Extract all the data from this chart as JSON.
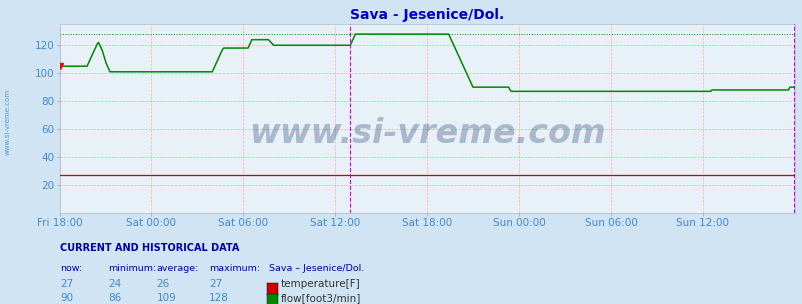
{
  "title": "Sava - Jesenice/Dol.",
  "title_color": "#0000cc",
  "bg_color": "#d0e4f4",
  "plot_bg_color": "#e8f0f8",
  "ylabel_color": "#4488cc",
  "xlabel_color": "#4488cc",
  "xlim": [
    0,
    575
  ],
  "ylim": [
    0,
    135
  ],
  "yticks": [
    20,
    40,
    60,
    80,
    100,
    120
  ],
  "xtick_labels": [
    "Fri 18:00",
    "Sat 00:00",
    "Sat 06:00",
    "Sat 12:00",
    "Sat 18:00",
    "Sun 00:00",
    "Sun 06:00",
    "Sun 12:00"
  ],
  "xtick_positions": [
    0,
    71,
    143,
    215,
    287,
    359,
    431,
    503
  ],
  "temp_max_line_y": 27,
  "flow_max_line_y": 128,
  "temp_color": "#cc0000",
  "flow_color": "#008800",
  "magenta_line_x": 227,
  "right_magenta_x": 574,
  "watermark": "www.si-vreme.com",
  "watermark_color": "#1a3a6a",
  "watermark_alpha": 0.3,
  "watermark_fontsize": 24,
  "left_label": "www.si-vreme.com",
  "left_label_color": "#5599bb",
  "footer_text": "CURRENT AND HISTORICAL DATA",
  "footer_color": "#0000aa",
  "stats_header": [
    "now:",
    "minimum:",
    "average:",
    "maximum:",
    "Sava – Jesenice/Dol."
  ],
  "temp_stats": [
    27,
    24,
    26,
    27
  ],
  "flow_stats": [
    90,
    86,
    109,
    128
  ],
  "temp_label": "temperature[F]",
  "flow_label": "flow[foot3/min]",
  "temp_color_box": "#cc0000",
  "flow_color_box": "#008800",
  "flow_data": [
    105,
    105,
    105,
    105,
    105,
    105,
    105,
    105,
    105,
    105,
    105,
    105,
    105,
    105,
    105,
    105,
    105,
    105,
    105,
    105,
    105,
    105,
    107,
    109,
    111,
    113,
    115,
    117,
    119,
    121,
    122,
    120,
    118,
    116,
    113,
    110,
    107,
    105,
    103,
    101,
    101,
    101,
    101,
    101,
    101,
    101,
    101,
    101,
    101,
    101,
    101,
    101,
    101,
    101,
    101,
    101,
    101,
    101,
    101,
    101,
    101,
    101,
    101,
    101,
    101,
    101,
    101,
    101,
    101,
    101,
    101,
    101,
    101,
    101,
    101,
    101,
    101,
    101,
    101,
    101,
    101,
    101,
    101,
    101,
    101,
    101,
    101,
    101,
    101,
    101,
    101,
    101,
    101,
    101,
    101,
    101,
    101,
    101,
    101,
    101,
    101,
    101,
    101,
    101,
    101,
    101,
    101,
    101,
    101,
    101,
    101,
    101,
    101,
    101,
    101,
    101,
    101,
    101,
    101,
    101,
    103,
    105,
    107,
    109,
    111,
    113,
    115,
    117,
    118,
    118,
    118,
    118,
    118,
    118,
    118,
    118,
    118,
    118,
    118,
    118,
    118,
    118,
    118,
    118,
    118,
    118,
    118,
    118,
    120,
    122,
    124,
    124,
    124,
    124,
    124,
    124,
    124,
    124,
    124,
    124,
    124,
    124,
    124,
    124,
    123,
    122,
    121,
    120,
    120,
    120,
    120,
    120,
    120,
    120,
    120,
    120,
    120,
    120,
    120,
    120,
    120,
    120,
    120,
    120,
    120,
    120,
    120,
    120,
    120,
    120,
    120,
    120,
    120,
    120,
    120,
    120,
    120,
    120,
    120,
    120,
    120,
    120,
    120,
    120,
    120,
    120,
    120,
    120,
    120,
    120,
    120,
    120,
    120,
    120,
    120,
    120,
    120,
    120,
    120,
    120,
    120,
    120,
    120,
    120,
    120,
    120,
    120,
    120,
    122,
    124,
    126,
    128,
    128,
    128,
    128,
    128,
    128,
    128,
    128,
    128,
    128,
    128,
    128,
    128,
    128,
    128,
    128,
    128,
    128,
    128,
    128,
    128,
    128,
    128,
    128,
    128,
    128,
    128,
    128,
    128,
    128,
    128,
    128,
    128,
    128,
    128,
    128,
    128,
    128,
    128,
    128,
    128,
    128,
    128,
    128,
    128,
    128,
    128,
    128,
    128,
    128,
    128,
    128,
    128,
    128,
    128,
    128,
    128,
    128,
    128,
    128,
    128,
    128,
    128,
    128,
    128,
    128,
    128,
    128,
    128,
    128,
    128,
    128,
    128,
    128,
    126,
    124,
    122,
    120,
    118,
    116,
    114,
    112,
    110,
    108,
    106,
    104,
    102,
    100,
    98,
    96,
    94,
    92,
    90,
    90,
    90,
    90,
    90,
    90,
    90,
    90,
    90,
    90,
    90,
    90,
    90,
    90,
    90,
    90,
    90,
    90,
    90,
    90,
    90,
    90,
    90,
    90,
    90,
    90,
    90,
    90,
    90,
    88,
    87,
    87,
    87,
    87,
    87,
    87,
    87,
    87,
    87,
    87,
    87,
    87,
    87,
    87,
    87,
    87,
    87,
    87,
    87,
    87,
    87,
    87,
    87,
    87,
    87,
    87,
    87,
    87,
    87,
    87,
    87,
    87,
    87,
    87,
    87,
    87,
    87,
    87,
    87,
    87,
    87,
    87,
    87,
    87,
    87,
    87,
    87,
    87,
    87,
    87,
    87,
    87,
    87,
    87,
    87,
    87,
    87,
    87,
    87,
    87,
    87,
    87,
    87,
    87,
    87,
    87,
    87,
    87,
    87,
    87,
    87,
    87,
    87,
    87,
    87,
    87,
    87,
    87,
    87,
    87,
    87,
    87,
    87,
    87,
    87,
    87,
    87,
    87,
    87,
    87,
    87,
    87,
    87,
    87,
    87,
    87,
    87,
    87,
    87,
    87,
    87,
    87,
    87,
    87,
    87,
    87,
    87,
    87,
    87,
    87,
    87,
    87,
    87,
    87,
    87,
    87,
    87,
    87,
    87,
    87,
    87,
    87,
    87,
    87,
    87,
    87,
    87,
    87,
    87,
    87,
    87,
    87,
    87,
    87,
    87,
    87,
    87,
    87,
    87,
    87,
    87,
    87,
    87,
    87,
    87,
    87,
    87,
    87,
    87,
    87,
    87,
    87,
    87,
    87,
    87,
    87,
    87,
    88,
    88,
    88,
    88,
    88,
    88,
    88,
    88,
    88,
    88,
    88,
    88,
    88,
    88,
    88,
    88,
    88,
    88,
    88,
    88,
    88,
    88,
    88,
    88,
    88,
    88,
    88,
    88,
    88,
    88,
    88,
    88,
    88,
    88,
    88,
    88,
    88,
    88,
    88,
    88,
    88,
    88,
    88,
    88,
    88,
    88,
    88,
    88,
    88,
    88,
    88,
    88,
    88,
    88,
    88,
    88,
    88,
    88,
    88,
    88,
    88,
    90,
    90,
    90,
    90,
    90
  ],
  "temp_data_y": 27
}
